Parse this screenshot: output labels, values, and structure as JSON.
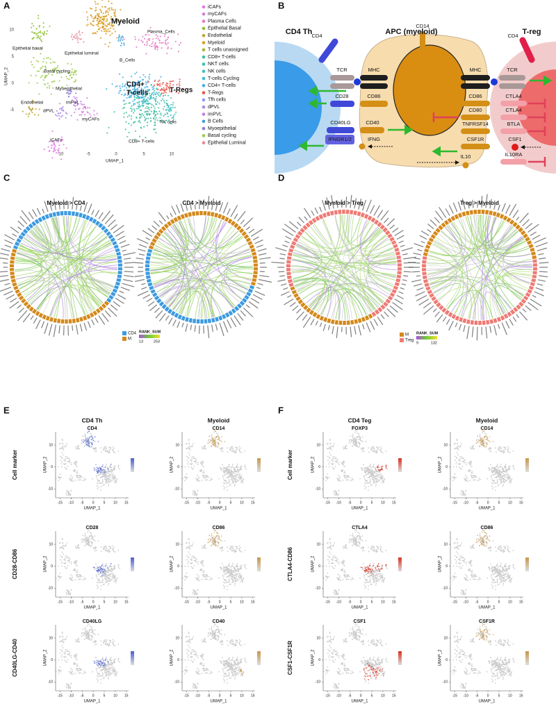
{
  "panels": [
    "A",
    "B",
    "C",
    "D",
    "E",
    "F"
  ],
  "umap": {
    "cluster_labels": [
      "Myeloid",
      "Plasma_Cells",
      "Epithelial basal",
      "Epithelial luminal",
      "B_Cells",
      "Basal cycling",
      "Myoepithelial",
      "CD4+",
      "T-cells",
      "T-Regs",
      "Endothelial",
      "imPVL",
      "dPVL",
      "myCAFs",
      "iCAFs",
      "NK cells",
      "CD8+ T-cells"
    ],
    "x_label": "UMAP_1",
    "y_label": "UMAP_2",
    "xticks": [
      -10,
      -5,
      0,
      5,
      10
    ],
    "yticks": [
      10,
      5,
      0,
      -5
    ],
    "legend": [
      {
        "name": "iCAFs",
        "color": "#e07ae0"
      },
      {
        "name": "myCAFs",
        "color": "#d07ed8"
      },
      {
        "name": "Plasma Cells",
        "color": "#e878c4"
      },
      {
        "name": "Epithelial Basal",
        "color": "#8fbf3a"
      },
      {
        "name": "Endothelial",
        "color": "#c0a62c"
      },
      {
        "name": "Myeloid",
        "color": "#d89e22"
      },
      {
        "name": "T cells unassigned",
        "color": "#a8b436"
      },
      {
        "name": "CD8+ T-cells",
        "color": "#3fc0a2"
      },
      {
        "name": "NKT cells",
        "color": "#3cc0b4"
      },
      {
        "name": "NK cells",
        "color": "#3bbfc6"
      },
      {
        "name": "T-cells Cycling",
        "color": "#3cb8d8"
      },
      {
        "name": "CD4+ T-cells",
        "color": "#45aee6"
      },
      {
        "name": "T-Regs",
        "color": "#e8564a"
      },
      {
        "name": "Tfh cells",
        "color": "#8e96ee"
      },
      {
        "name": "dPVL",
        "color": "#a68ae8"
      },
      {
        "name": "imPVL",
        "color": "#c17ee6"
      },
      {
        "name": "B Cells",
        "color": "#3a9ed8"
      },
      {
        "name": "Myoepithelial",
        "color": "#8c7cd6"
      },
      {
        "name": "Basal cycling",
        "color": "#9ccc48"
      },
      {
        "name": "Epithelial Luminal",
        "color": "#e8889a"
      }
    ]
  },
  "diagram": {
    "cells": [
      "CD4 Th",
      "APC (myeloid)",
      "T-reg"
    ],
    "molecules": [
      "CD4",
      "CD14",
      "CD4",
      "TCR",
      "MHC",
      "CD28",
      "CD86",
      "CD40LG",
      "CD40",
      "IFNGR1/2",
      "IFNG",
      "MHC",
      "TCR",
      "CD86",
      "CTLA4",
      "CD80",
      "CTLA4",
      "TNFRSF14",
      "BTLA",
      "CSF1R",
      "CSF1",
      "IL10",
      "IL10RA"
    ]
  },
  "chord": {
    "C": {
      "titles": [
        "Myeloid > CD4",
        "CD4  > Myeloid"
      ],
      "groups": [
        {
          "name": "CD4",
          "color": "#3b9ae0"
        },
        {
          "name": "M",
          "color": "#d4891a"
        }
      ],
      "scale_title": "RANK_SUM",
      "scale_ticks": [
        13,
        253
      ]
    },
    "D": {
      "titles": [
        "Myeloid > Treg",
        "Treg > Myeloid"
      ],
      "groups": [
        {
          "name": "M",
          "color": "#d4891a"
        },
        {
          "name": "Treg",
          "color": "#ef7a74"
        }
      ],
      "scale_title": "RANK_SUM",
      "scale_ticks": [
        9,
        132
      ]
    }
  },
  "feature_plots": {
    "x_label": "UMAP_1",
    "y_label": "UMAP_2",
    "xticks": [
      -15,
      -10,
      -5,
      0,
      5,
      10,
      15
    ],
    "yticks": [
      10,
      0,
      -10
    ],
    "E": {
      "columns": [
        "CD4 Th",
        "Myeloid"
      ],
      "rows": [
        "Cell marker",
        "CD28-CD86",
        "CD40LG-CD40"
      ],
      "genes": [
        [
          "CD4",
          "CD14"
        ],
        [
          "CD28",
          "CD86"
        ],
        [
          "CD40LG",
          "CD40"
        ]
      ]
    },
    "F": {
      "columns": [
        "CD4 Teg",
        "Myeloid"
      ],
      "rows": [
        "Cell marker",
        "CTLA4-CD86",
        "CSF1-CSF1R"
      ],
      "genes": [
        [
          "FOXP3",
          "CD14"
        ],
        [
          "CTLA4",
          "CD86"
        ],
        [
          "CSF1",
          "CSF1R"
        ]
      ]
    }
  }
}
